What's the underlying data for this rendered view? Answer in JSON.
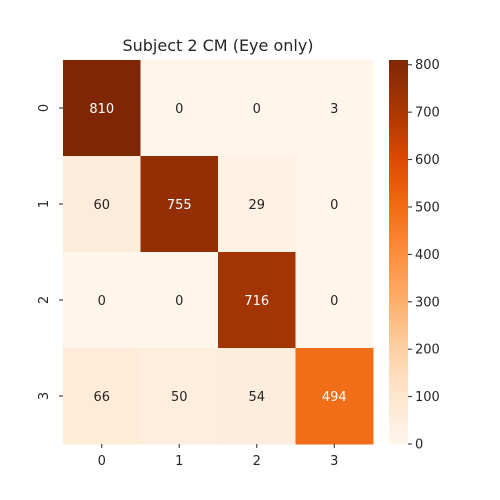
{
  "chart_data": {
    "type": "heatmap",
    "title": "Subject 2 CM (Eye only)",
    "xlabel": "",
    "ylabel": "",
    "x_categories": [
      "0",
      "1",
      "2",
      "3"
    ],
    "y_categories": [
      "0",
      "1",
      "2",
      "3"
    ],
    "matrix": [
      [
        810,
        0,
        0,
        3
      ],
      [
        60,
        755,
        29,
        0
      ],
      [
        0,
        0,
        716,
        0
      ],
      [
        66,
        50,
        54,
        494
      ]
    ],
    "colorbar": {
      "min": 0,
      "max": 810,
      "ticks": [
        "0",
        "100",
        "200",
        "300",
        "400",
        "500",
        "600",
        "700",
        "800"
      ],
      "colormap": "Oranges"
    },
    "colors": {
      "low": "#fff5eb",
      "high": "#7f2704",
      "text_dark": "#262626",
      "text_light": "#ffffff"
    }
  }
}
